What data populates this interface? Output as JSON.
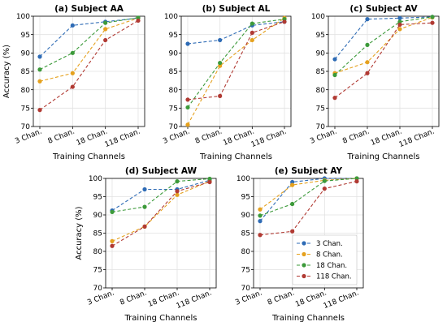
{
  "chart_data": {
    "type": "line",
    "x_tick_labels": [
      "3 Chan.",
      "8 Chan.",
      "18 Chan.",
      "118 Chan."
    ],
    "ylim": [
      70,
      100
    ],
    "y_ticks": [
      70,
      75,
      80,
      85,
      90,
      95,
      100
    ],
    "ylabel": "Accuracy (%)",
    "xlabel": "Training Channels",
    "grid": true,
    "line_style": "dashed",
    "series_legend": [
      {
        "name": "3 Chan.",
        "color": "#2E6BB5"
      },
      {
        "name": "8 Chan.",
        "color": "#E5A11E"
      },
      {
        "name": "18 Chan.",
        "color": "#3C9A3A"
      },
      {
        "name": "118 Chan.",
        "color": "#B13A33"
      }
    ],
    "legend_placement": "lower-right (panel e)",
    "panels": [
      {
        "title": "(a) Subject AA",
        "series": [
          {
            "name": "3 Chan.",
            "values": [
              89.0,
              97.5,
              98.5,
              99.5
            ]
          },
          {
            "name": "8 Chan.",
            "values": [
              82.3,
              84.5,
              96.5,
              99.5
            ]
          },
          {
            "name": "18 Chan.",
            "values": [
              85.5,
              90.0,
              98.2,
              99.6
            ]
          },
          {
            "name": "118 Chan.",
            "values": [
              74.5,
              80.8,
              93.5,
              98.8
            ]
          }
        ]
      },
      {
        "title": "(b) Subject AL",
        "series": [
          {
            "name": "3 Chan.",
            "values": [
              92.5,
              93.5,
              97.5,
              98.5
            ]
          },
          {
            "name": "8 Chan.",
            "values": [
              70.5,
              86.5,
              93.5,
              99.5
            ]
          },
          {
            "name": "18 Chan.",
            "values": [
              75.2,
              87.3,
              98.0,
              99.2
            ]
          },
          {
            "name": "118 Chan.",
            "values": [
              77.3,
              78.3,
              95.5,
              98.5
            ]
          }
        ]
      },
      {
        "title": "(c) Subject AV",
        "series": [
          {
            "name": "3 Chan.",
            "values": [
              88.3,
              99.2,
              99.5,
              99.8
            ]
          },
          {
            "name": "8 Chan.",
            "values": [
              84.5,
              87.5,
              96.5,
              99.7
            ]
          },
          {
            "name": "18 Chan.",
            "values": [
              84.0,
              92.2,
              98.5,
              99.8
            ]
          },
          {
            "name": "118 Chan.",
            "values": [
              77.8,
              84.5,
              97.7,
              98.2
            ]
          }
        ]
      },
      {
        "title": "(d) Subject AW",
        "series": [
          {
            "name": "3 Chan.",
            "values": [
              91.2,
              97.0,
              97.0,
              99.5
            ]
          },
          {
            "name": "8 Chan.",
            "values": [
              82.8,
              86.8,
              95.5,
              99.2
            ]
          },
          {
            "name": "18 Chan.",
            "values": [
              90.8,
              92.2,
              99.2,
              99.9
            ]
          },
          {
            "name": "118 Chan.",
            "values": [
              81.5,
              86.8,
              96.5,
              99.0
            ]
          }
        ]
      },
      {
        "title": "(e) Subject AY",
        "series": [
          {
            "name": "3 Chan.",
            "values": [
              88.3,
              99.0,
              100.0,
              100.0
            ]
          },
          {
            "name": "8 Chan.",
            "values": [
              91.5,
              98.2,
              99.5,
              100.0
            ]
          },
          {
            "name": "18 Chan.",
            "values": [
              89.8,
              93.0,
              99.3,
              100.0
            ]
          },
          {
            "name": "118 Chan.",
            "values": [
              84.5,
              85.5,
              97.2,
              99.2
            ]
          }
        ]
      }
    ]
  }
}
